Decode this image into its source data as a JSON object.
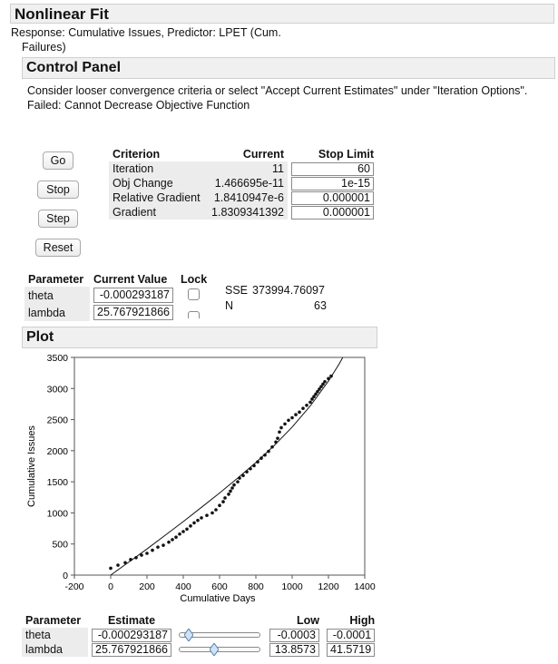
{
  "header": {
    "title": "Nonlinear Fit",
    "response_line1": "Response: Cumulative Issues, Predictor: LPET (Cum.",
    "response_line2": "Failures)"
  },
  "control_panel": {
    "title": "Control Panel",
    "message1": "Consider looser convergence criteria or select \"Accept Current Estimates\" under \"Iteration Options\".",
    "message2": "Failed: Cannot Decrease Objective Function",
    "buttons": {
      "go": "Go",
      "stop": "Stop",
      "step": "Step",
      "reset": "Reset"
    },
    "criteria": {
      "headers": [
        "Criterion",
        "Current",
        "Stop Limit"
      ],
      "rows": [
        {
          "name": "Iteration",
          "current": "11",
          "limit": "60"
        },
        {
          "name": "Obj Change",
          "current": "1.466695e-11",
          "limit": "1e-15"
        },
        {
          "name": "Relative Gradient",
          "current": "1.8410947e-6",
          "limit": "0.000001"
        },
        {
          "name": "Gradient",
          "current": "1.8309341392",
          "limit": "0.000001"
        }
      ]
    },
    "parameters": {
      "headers": [
        "Parameter",
        "Current Value",
        "Lock"
      ],
      "rows": [
        {
          "name": "theta",
          "value": "-0.000293187"
        },
        {
          "name": "lambda",
          "value": "25.767921866"
        }
      ]
    },
    "stats": {
      "sse_label": "SSE",
      "sse_value": "373994.76097",
      "n_label": "N",
      "n_value": "63"
    }
  },
  "plot": {
    "title": "Plot",
    "xlabel": "Cumulative Days",
    "ylabel": "Cumulative Issues",
    "xlim": [
      -200,
      1400
    ],
    "ylim": [
      0,
      3500
    ],
    "x_ticks": [
      "-200",
      "0",
      "200",
      "400",
      "600",
      "800",
      "1000",
      "1200",
      "1400"
    ],
    "y_ticks": [
      "0",
      "500",
      "1000",
      "1500",
      "2000",
      "2500",
      "3000",
      "3500"
    ]
  },
  "chart_data": {
    "type": "scatter",
    "title": "",
    "xlabel": "Cumulative Days",
    "ylabel": "Cumulative Issues",
    "xlim": [
      -200,
      1400
    ],
    "ylim": [
      0,
      3500
    ],
    "grid": false,
    "series": [
      {
        "points": [
          [
            0,
            110
          ],
          [
            40,
            160
          ],
          [
            80,
            200
          ],
          [
            110,
            250
          ],
          [
            140,
            280
          ],
          [
            170,
            320
          ],
          [
            200,
            350
          ],
          [
            230,
            400
          ],
          [
            260,
            450
          ],
          [
            290,
            480
          ],
          [
            320,
            530
          ],
          [
            340,
            570
          ],
          [
            360,
            610
          ],
          [
            380,
            660
          ],
          [
            400,
            700
          ],
          [
            420,
            740
          ],
          [
            440,
            790
          ],
          [
            460,
            840
          ],
          [
            480,
            880
          ],
          [
            500,
            920
          ],
          [
            530,
            960
          ],
          [
            560,
            1000
          ],
          [
            580,
            1050
          ],
          [
            600,
            1120
          ],
          [
            620,
            1180
          ],
          [
            630,
            1240
          ],
          [
            650,
            1300
          ],
          [
            660,
            1350
          ],
          [
            670,
            1400
          ],
          [
            680,
            1450
          ],
          [
            700,
            1500
          ],
          [
            710,
            1560
          ],
          [
            730,
            1600
          ],
          [
            750,
            1660
          ],
          [
            770,
            1710
          ],
          [
            790,
            1760
          ],
          [
            810,
            1820
          ],
          [
            830,
            1880
          ],
          [
            850,
            1930
          ],
          [
            870,
            1990
          ],
          [
            890,
            2060
          ],
          [
            910,
            2140
          ],
          [
            920,
            2200
          ],
          [
            930,
            2300
          ],
          [
            940,
            2370
          ],
          [
            960,
            2430
          ],
          [
            980,
            2490
          ],
          [
            1000,
            2530
          ],
          [
            1020,
            2580
          ],
          [
            1040,
            2620
          ],
          [
            1060,
            2680
          ],
          [
            1080,
            2730
          ],
          [
            1100,
            2780
          ],
          [
            1110,
            2830
          ],
          [
            1120,
            2870
          ],
          [
            1130,
            2910
          ],
          [
            1140,
            2950
          ],
          [
            1150,
            2990
          ],
          [
            1160,
            3030
          ],
          [
            1170,
            3070
          ],
          [
            1180,
            3110
          ],
          [
            1200,
            3160
          ],
          [
            1215,
            3200
          ]
        ]
      },
      {
        "type": "line",
        "points": [
          [
            0,
            0
          ],
          [
            100,
            210
          ],
          [
            200,
            420
          ],
          [
            300,
            640
          ],
          [
            400,
            860
          ],
          [
            500,
            1090
          ],
          [
            600,
            1320
          ],
          [
            700,
            1560
          ],
          [
            800,
            1810
          ],
          [
            900,
            2080
          ],
          [
            1000,
            2380
          ],
          [
            1100,
            2720
          ],
          [
            1200,
            3120
          ],
          [
            1260,
            3400
          ],
          [
            1290,
            3560
          ]
        ]
      }
    ]
  },
  "estimates": {
    "headers": [
      "Parameter",
      "Estimate",
      "Low",
      "High"
    ],
    "rows": [
      {
        "name": "theta",
        "estimate": "-0.000293187",
        "low": "-0.0003",
        "high": "-0.0001",
        "slider_fraction": 0.07
      },
      {
        "name": "lambda",
        "estimate": "25.767921866",
        "low": "13.8573",
        "high": "41.5719",
        "slider_fraction": 0.43
      }
    ]
  }
}
